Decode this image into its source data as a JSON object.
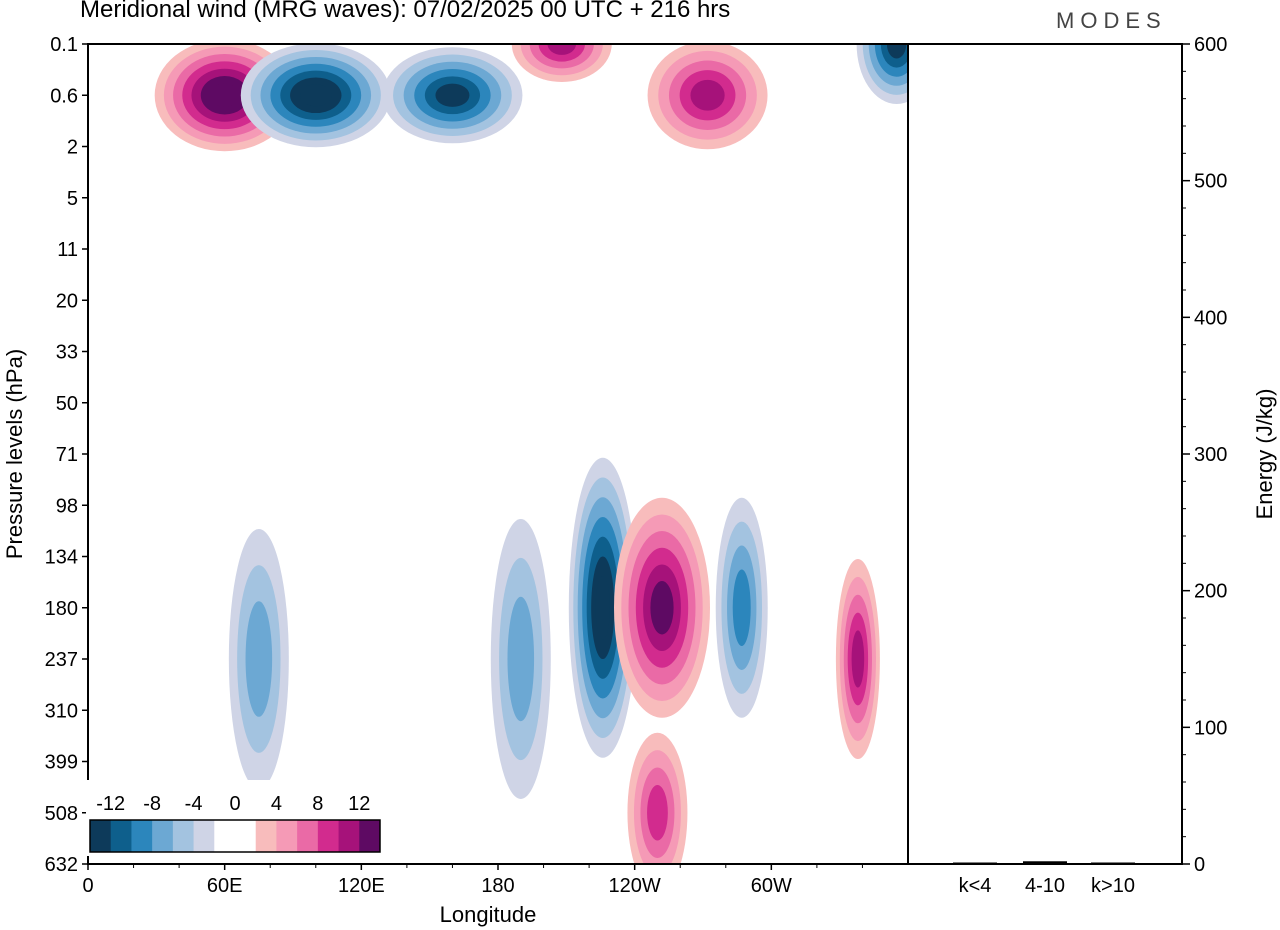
{
  "title": "Meridional wind (MRG waves):  07/02/2025  00 UTC  + 216 hrs",
  "logo_text": "MODES",
  "chart_data": [
    {
      "type": "heatmap",
      "name": "meridional-wind-contours",
      "xlabel": "Longitude",
      "ylabel": "Pressure levels (hPa)",
      "x_ticks": [
        "0",
        "60E",
        "120E",
        "180",
        "120W",
        "60W"
      ],
      "x_tick_degrees": [
        0,
        60,
        120,
        180,
        240,
        300
      ],
      "xlim": [
        0,
        360
      ],
      "y_ticks": [
        "0.1",
        "0.6",
        "2",
        "5",
        "11",
        "20",
        "33",
        "50",
        "71",
        "98",
        "134",
        "180",
        "237",
        "310",
        "399",
        "508",
        "632"
      ],
      "colorbar": {
        "labels": [
          "-12",
          "-8",
          "-4",
          "0",
          "4",
          "8",
          "12"
        ],
        "levels": [
          -14,
          -12,
          -10,
          -8,
          -6,
          -4,
          -2,
          2,
          4,
          6,
          8,
          10,
          12,
          14
        ],
        "colors": [
          "#0d3a5a",
          "#0e5f8c",
          "#2c86bc",
          "#6ca8d3",
          "#a3c3e0",
          "#cfd4e6",
          "#ffffff",
          "#ffffff",
          "#f8bcbc",
          "#f59ab6",
          "#ea6aa6",
          "#d22b8e",
          "#a6127a",
          "#5e0a63"
        ]
      },
      "features": [
        {
          "lon": 60,
          "level": "0.6",
          "v": 14
        },
        {
          "lon": 100,
          "level": "0.6",
          "v": -14
        },
        {
          "lon": 160,
          "level": "0.6",
          "v": -12
        },
        {
          "lon": 208,
          "level": "0.1",
          "v": 10
        },
        {
          "lon": 272,
          "level": "0.6",
          "v": 11
        },
        {
          "lon": 355,
          "level": "0.1",
          "v": -13
        },
        {
          "lon": 226,
          "level": "180",
          "v": -14
        },
        {
          "lon": 252,
          "level": "180",
          "v": 12
        },
        {
          "lon": 287,
          "level": "180",
          "v": -8
        },
        {
          "lon": 338,
          "level": "237",
          "v": 10
        },
        {
          "lon": 75,
          "level": "237",
          "v": -7
        },
        {
          "lon": 190,
          "level": "237",
          "v": -7
        },
        {
          "lon": 250,
          "level": "508",
          "v": 9
        }
      ]
    },
    {
      "type": "bar",
      "name": "energy-by-wavenumber",
      "categories": [
        "k<4",
        "4-10",
        "k>10"
      ],
      "values": [
        0,
        2,
        0
      ],
      "ylabel": "Energy (J/kg)",
      "ylim": [
        0,
        600
      ],
      "y_ticks": [
        0,
        100,
        200,
        300,
        400,
        500,
        600
      ]
    }
  ]
}
